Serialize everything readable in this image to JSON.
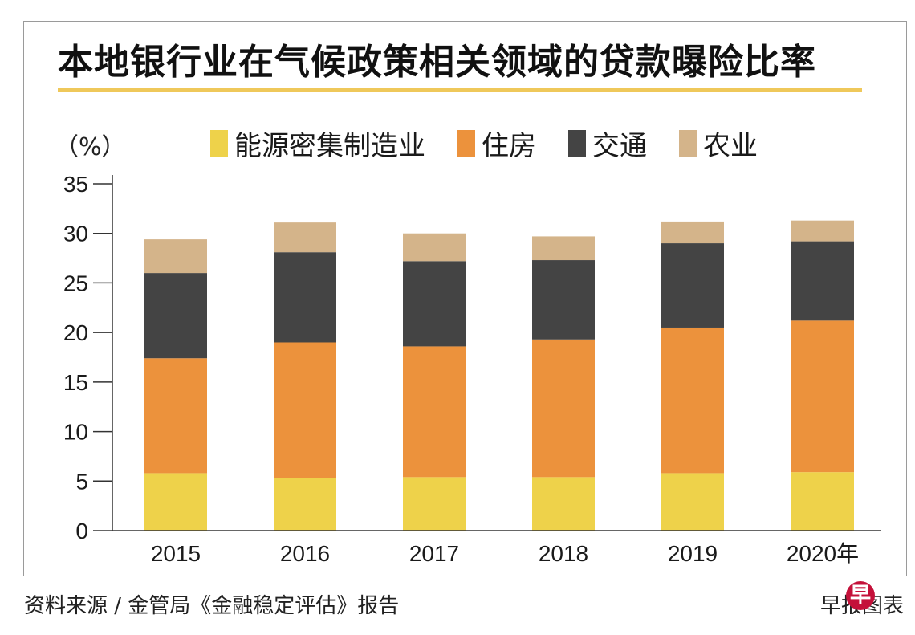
{
  "title": "本地银行业在气候政策相关领域的贷款曝险比率",
  "unit_label": "（%）",
  "source": "资料来源 / 金管局《金融稳定评估》报告",
  "credit": "早报图表",
  "logo_char": "早",
  "colors": {
    "title_rule": "#efc85a",
    "logo": "#c4113a"
  },
  "chart_data": {
    "type": "bar",
    "stacked": true,
    "title": "本地银行业在气候政策相关领域的贷款曝险比率",
    "ylabel": "（%）",
    "xlabel": "",
    "categories": [
      "2015",
      "2016",
      "2017",
      "2018",
      "2019",
      "2020年"
    ],
    "ylim": [
      0,
      35
    ],
    "yticks": [
      0,
      5,
      10,
      15,
      20,
      25,
      30,
      35
    ],
    "grid": false,
    "legend_position": "top",
    "series": [
      {
        "name": "能源密集制造业",
        "color": "#eed24a",
        "values": [
          5.8,
          5.3,
          5.4,
          5.4,
          5.8,
          5.9
        ]
      },
      {
        "name": "住房",
        "color": "#ec923c",
        "values": [
          11.6,
          13.7,
          13.2,
          13.9,
          14.7,
          15.3
        ]
      },
      {
        "name": "交通",
        "color": "#444444",
        "values": [
          8.6,
          9.1,
          8.6,
          8.0,
          8.5,
          8.0
        ]
      },
      {
        "name": "农业",
        "color": "#d4b48a",
        "values": [
          3.4,
          3.0,
          2.8,
          2.4,
          2.2,
          2.1
        ]
      }
    ]
  }
}
